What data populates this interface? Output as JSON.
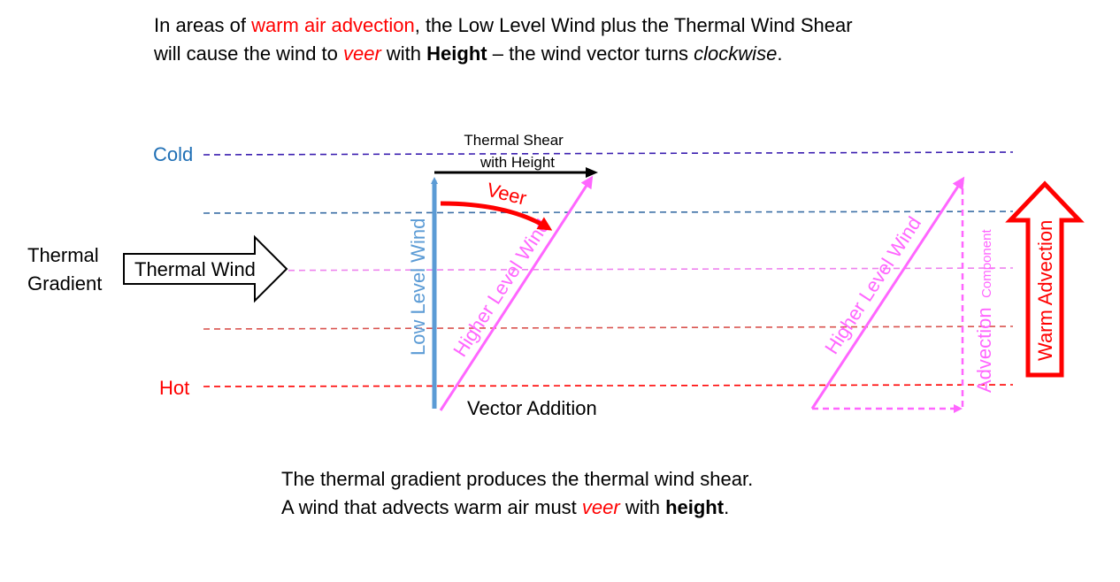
{
  "intro": {
    "l1_a": "In areas of ",
    "l1_b": "warm air advection",
    "l1_c": ", the Low Level Wind plus the Thermal Wind Shear",
    "l2_a": "will cause the wind to ",
    "l2_b": "veer",
    "l2_c": " with ",
    "l2_d": "Height",
    "l2_e": " – the wind vector turns ",
    "l2_f": "clockwise",
    "l2_g": "."
  },
  "labels": {
    "cold": "Cold",
    "hot": "Hot",
    "thermal_gradient_1": "Thermal",
    "thermal_gradient_2": "Gradient",
    "thermal_wind": "Thermal Wind",
    "thermal_shear_1": "Thermal Shear",
    "thermal_shear_2": "with Height",
    "veer": "Veer",
    "low_level_wind": "Low Level Wind",
    "higher_level_wind": "Higher Level Wind",
    "vector_addition": "Vector Addition",
    "higher_level_wind_right": "Higher Level Wind",
    "advection": "Advection",
    "component": "Component",
    "warm_advection": "Warm Advection"
  },
  "outro": {
    "l1": "The thermal gradient produces the thermal wind shear.",
    "l2_a": "A wind that advects warm air must ",
    "l2_b": "veer",
    "l2_c": " with ",
    "l2_d": "height",
    "l2_e": "."
  },
  "colors": {
    "cold": "#1f6fb5",
    "hot": "#ff0000",
    "isotherm_top": "#3b1fb0",
    "isotherm_2": "#3a6ea5",
    "isotherm_mid": "#ee82ee",
    "isotherm_4": "#d9534f",
    "isotherm_bottom": "#ff0000",
    "low_level_wind": "#5b9bd5",
    "higher_level_wind": "#ff66ff",
    "veer_arrow": "#ff0000",
    "warm_advection": "#ff0000"
  }
}
